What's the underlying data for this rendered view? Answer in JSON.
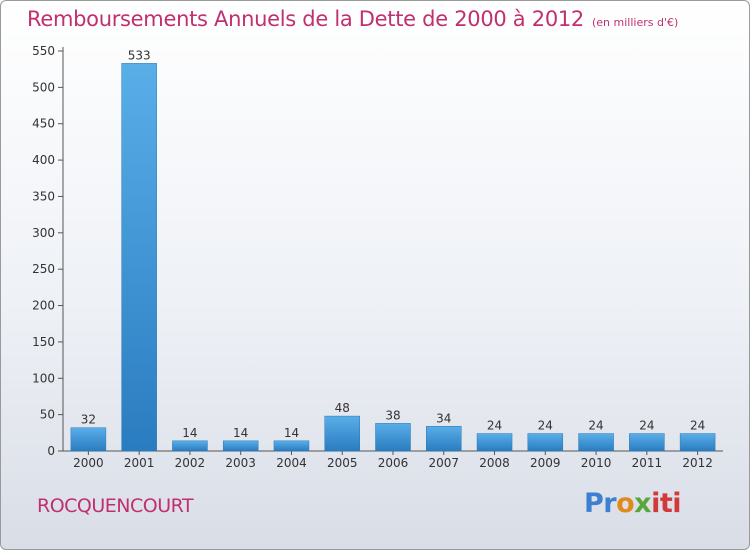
{
  "title": "Remboursements Annuels de la Dette de 2000 à 2012",
  "subtitle": "(en milliers d'€)",
  "commune": "ROCQUENCOURT",
  "logo": {
    "parts": [
      "Pr",
      "o",
      "x",
      "iti"
    ]
  },
  "colors": {
    "bar_top": "#5aaee8",
    "bar_bottom": "#2a7cc0",
    "title": "#c0306f"
  },
  "chart_data": {
    "type": "bar",
    "title": "Remboursements Annuels de la Dette de 2000 à 2012",
    "subtitle": "(en milliers d'€)",
    "categories": [
      "2000",
      "2001",
      "2002",
      "2003",
      "2004",
      "2005",
      "2006",
      "2007",
      "2008",
      "2009",
      "2010",
      "2011",
      "2012"
    ],
    "values": [
      32,
      533,
      14,
      14,
      14,
      48,
      38,
      34,
      24,
      24,
      24,
      24,
      24
    ],
    "data_labels": [
      "32",
      "533",
      "14",
      "14",
      "14",
      "48",
      "38",
      "34",
      "24",
      "24",
      "24",
      "24",
      "24"
    ],
    "ylim": [
      0,
      550
    ],
    "yticks": [
      0,
      50,
      100,
      150,
      200,
      250,
      300,
      350,
      400,
      450,
      500,
      550
    ],
    "grid": false,
    "xlabel": "",
    "ylabel": ""
  }
}
